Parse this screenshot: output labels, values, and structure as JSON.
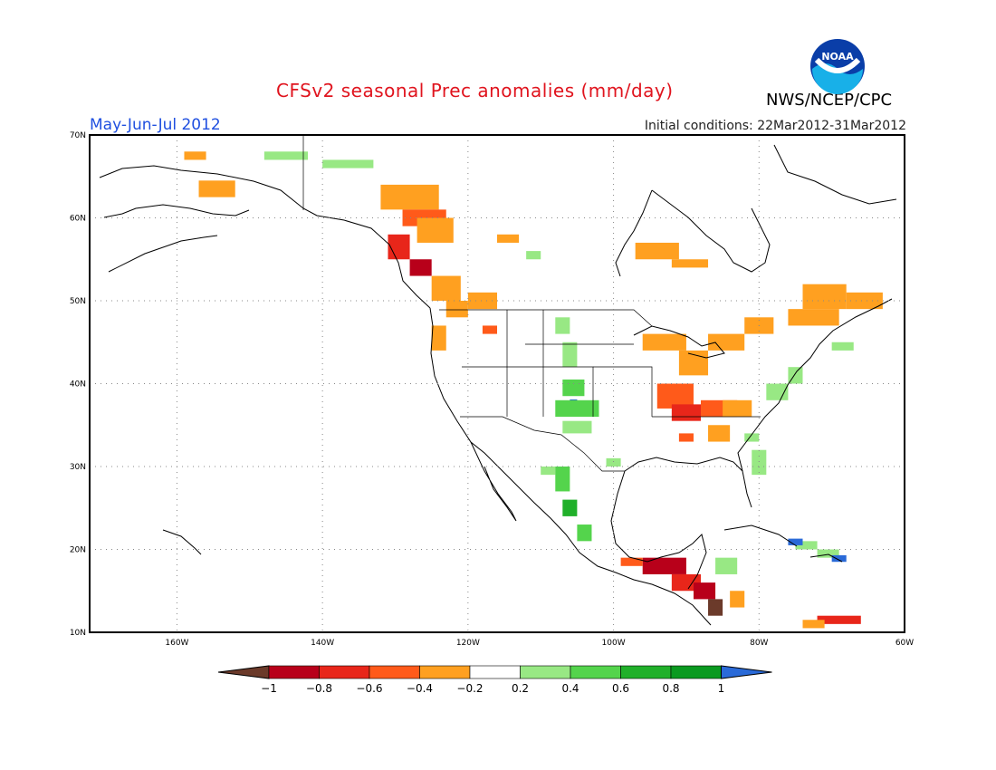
{
  "title": "CFSv2 seasonal Prec anomalies (mm/day)",
  "period": "May-Jun-Jul 2012",
  "initial_conditions": "Initial conditions: 22Mar2012-31Mar2012",
  "agency": "NWS/NCEP/CPC",
  "logo_text": "NOAA",
  "map": {
    "lon_range": [
      -172,
      -60
    ],
    "lat_range": [
      10,
      70
    ],
    "lon_ticks": [
      "160W",
      "140W",
      "120W",
      "100W",
      "80W",
      "60W"
    ],
    "lat_ticks": [
      "10N",
      "20N",
      "30N",
      "40N",
      "50N",
      "60N",
      "70N"
    ],
    "grid": "dotted"
  },
  "colorbar": {
    "labels": [
      "-1",
      "-0.8",
      "-0.6",
      "-0.4",
      "-0.2",
      "0.2",
      "0.4",
      "0.6",
      "0.8",
      "1"
    ],
    "colors": [
      "#6b3a2a",
      "#b8001a",
      "#e8261a",
      "#ff5a1a",
      "#ffa020",
      "#ffffff",
      "#98e884",
      "#54d44c",
      "#20b02a",
      "#0a9a20",
      "#2a6ad8"
    ]
  },
  "palette": {
    "below_-1": "#6b3a2a",
    "-1_-0.8": "#b8001a",
    "-0.8_-0.6": "#e8261a",
    "-0.6_-0.4": "#ff5a1a",
    "-0.4_-0.2": "#ffa020",
    "0.2_0.4": "#98e884",
    "0.4_0.6": "#54d44c",
    "0.6_0.8": "#20b02a",
    "above_1": "#2a6ad8"
  }
}
